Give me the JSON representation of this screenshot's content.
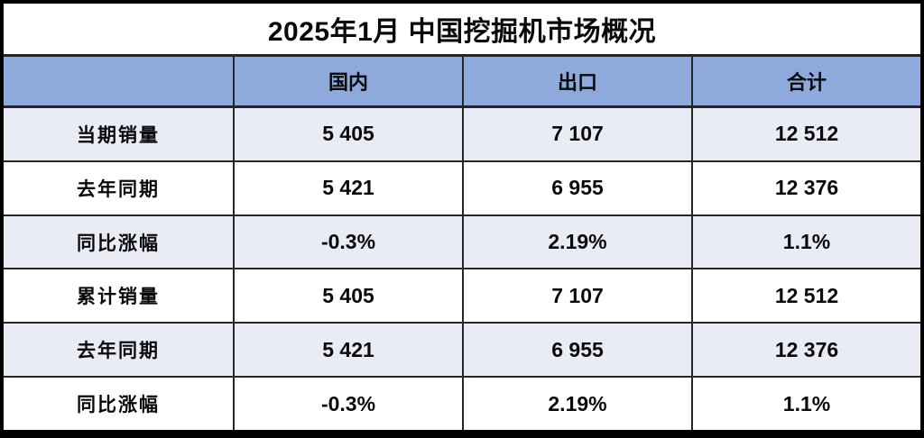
{
  "title": "2025年1月 中国挖掘机市场概况",
  "colors": {
    "header-bg": "#8EA9DB",
    "band-bg": "#E9EBF5",
    "row-bg": "#FFFFFF",
    "frame": "#000000",
    "grid": "#262626",
    "text": "#0A0A0A"
  },
  "chart_data": {
    "type": "table",
    "title": "2025年1月 中国挖掘机市场概况",
    "columns": [
      "",
      "国内",
      "出口",
      "合计"
    ],
    "rows": [
      {
        "label": "当期销量",
        "values": [
          "5 405",
          "7 107",
          "12 512"
        ]
      },
      {
        "label": "去年同期",
        "values": [
          "5 421",
          "6 955",
          "12 376"
        ]
      },
      {
        "label": "同比涨幅",
        "values": [
          "-0.3%",
          "2.19%",
          "1.1%"
        ]
      },
      {
        "label": "累计销量",
        "values": [
          "5 405",
          "7 107",
          "12 512"
        ]
      },
      {
        "label": "去年同期",
        "values": [
          "5 421",
          "6 955",
          "12 376"
        ]
      },
      {
        "label": "同比涨幅",
        "values": [
          "-0.3%",
          "2.19%",
          "1.1%"
        ]
      }
    ],
    "layout": {
      "banded_rows": true,
      "header_fill": "#8EA9DB",
      "band_fill": "#E9EBF5"
    }
  }
}
